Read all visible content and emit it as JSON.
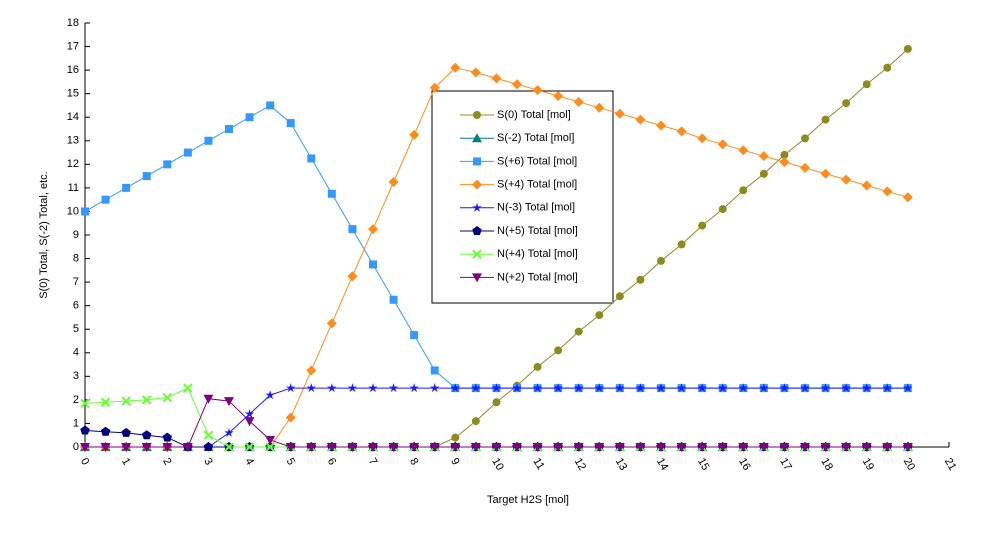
{
  "chart_data": {
    "type": "line",
    "x_label": "Target H2S [mol]",
    "y_label": "S(0) Total, S(-2) Total, etc.",
    "x": [
      0,
      0.5,
      1,
      1.5,
      2,
      2.5,
      3,
      3.5,
      4,
      4.5,
      5,
      5.5,
      6,
      6.5,
      7,
      7.5,
      8,
      8.5,
      9,
      9.5,
      10,
      10.5,
      11,
      11.5,
      12,
      12.5,
      13,
      13.5,
      14,
      14.5,
      15,
      15.5,
      16,
      16.5,
      17,
      17.5,
      18,
      18.5,
      19,
      19.5,
      20
    ],
    "xlim": [
      0,
      21
    ],
    "xticks": [
      0,
      1,
      2,
      3,
      4,
      5,
      6,
      7,
      8,
      9,
      10,
      11,
      12,
      13,
      14,
      15,
      16,
      17,
      18,
      19,
      20,
      21
    ],
    "ylim": [
      0,
      18
    ],
    "yticks": [
      0,
      1,
      2,
      3,
      4,
      5,
      6,
      7,
      8,
      9,
      10,
      11,
      12,
      13,
      14,
      15,
      16,
      17,
      18
    ],
    "series": [
      {
        "name": "S(0) Total [mol]",
        "color": "#8c8c1e",
        "marker": "circle",
        "values": [
          0,
          0,
          0,
          0,
          0,
          0,
          0,
          0,
          0,
          0,
          0,
          0,
          0,
          0,
          0,
          0,
          0,
          0,
          0.4,
          1.1,
          1.9,
          2.6,
          3.4,
          4.1,
          4.9,
          5.6,
          6.4,
          7.1,
          7.9,
          8.6,
          9.4,
          10.1,
          10.9,
          11.6,
          12.4,
          13.1,
          13.9,
          14.6,
          15.4,
          16.1,
          16.9
        ]
      },
      {
        "name": "S(-2) Total [mol]",
        "color": "#008080",
        "marker": "triangle",
        "values": [
          0,
          0,
          0,
          0,
          0,
          0,
          0,
          0,
          0,
          0,
          0,
          0,
          0,
          0,
          0,
          0,
          0,
          0,
          0,
          0,
          0,
          0,
          0,
          0,
          0,
          0,
          0,
          0,
          0,
          0,
          0,
          0,
          0,
          0,
          0,
          0,
          0,
          0,
          0,
          0,
          0
        ]
      },
      {
        "name": "S(+6) Total [mol]",
        "color": "#3399ff",
        "marker": "square",
        "values": [
          10,
          10.5,
          11,
          11.5,
          12,
          12.5,
          13,
          13.5,
          14,
          14.5,
          13.75,
          12.25,
          10.75,
          9.25,
          7.75,
          6.25,
          4.75,
          3.25,
          2.5,
          2.5,
          2.5,
          2.5,
          2.5,
          2.5,
          2.5,
          2.5,
          2.5,
          2.5,
          2.5,
          2.5,
          2.5,
          2.5,
          2.5,
          2.5,
          2.5,
          2.5,
          2.5,
          2.5,
          2.5,
          2.5,
          2.5
        ]
      },
      {
        "name": "S(+4) Total [mol]",
        "color": "#ff8c1a",
        "marker": "diamond",
        "values": [
          0,
          0,
          0,
          0,
          0,
          0,
          0,
          0,
          0,
          0,
          1.25,
          3.25,
          5.25,
          7.25,
          9.25,
          11.25,
          13.25,
          15.25,
          16.1,
          15.9,
          15.65,
          15.4,
          15.15,
          14.9,
          14.65,
          14.4,
          14.15,
          13.9,
          13.65,
          13.4,
          13.1,
          12.85,
          12.6,
          12.35,
          12.1,
          11.85,
          11.6,
          11.35,
          11.1,
          10.85,
          10.6
        ]
      },
      {
        "name": "N(-3) Total [mol]",
        "color": "#1a1aff",
        "marker": "star",
        "values": [
          0,
          0,
          0,
          0,
          0,
          0,
          0,
          0.6,
          1.4,
          2.2,
          2.5,
          2.5,
          2.5,
          2.5,
          2.5,
          2.5,
          2.5,
          2.5,
          2.5,
          2.5,
          2.5,
          2.5,
          2.5,
          2.5,
          2.5,
          2.5,
          2.5,
          2.5,
          2.5,
          2.5,
          2.5,
          2.5,
          2.5,
          2.5,
          2.5,
          2.5,
          2.5,
          2.5,
          2.5,
          2.5,
          2.5
        ]
      },
      {
        "name": "N(+5) Total [mol]",
        "color": "#000080",
        "marker": "pentagon",
        "values": [
          0.7,
          0.65,
          0.6,
          0.5,
          0.4,
          0,
          0,
          0,
          0,
          0,
          0,
          0,
          0,
          0,
          0,
          0,
          0,
          0,
          0,
          0,
          0,
          0,
          0,
          0,
          0,
          0,
          0,
          0,
          0,
          0,
          0,
          0,
          0,
          0,
          0,
          0,
          0,
          0,
          0,
          0,
          0
        ]
      },
      {
        "name": "N(+4) Total [mol]",
        "color": "#66ff33",
        "marker": "cross",
        "values": [
          1.85,
          1.9,
          1.95,
          2,
          2.1,
          2.5,
          0.5,
          0,
          0,
          0,
          0,
          0,
          0,
          0,
          0,
          0,
          0,
          0,
          0,
          0,
          0,
          0,
          0,
          0,
          0,
          0,
          0,
          0,
          0,
          0,
          0,
          0,
          0,
          0,
          0,
          0,
          0,
          0,
          0,
          0,
          0
        ]
      },
      {
        "name": "N(+2) Total [mol]",
        "color": "#800080",
        "marker": "triangle-down",
        "values": [
          0,
          0,
          0,
          0,
          0,
          0,
          2.05,
          1.95,
          1.1,
          0.3,
          0,
          0,
          0,
          0,
          0,
          0,
          0,
          0,
          0,
          0,
          0,
          0,
          0,
          0,
          0,
          0,
          0,
          0,
          0,
          0,
          0,
          0,
          0,
          0,
          0,
          0,
          0,
          0,
          0,
          0,
          0
        ]
      }
    ]
  }
}
